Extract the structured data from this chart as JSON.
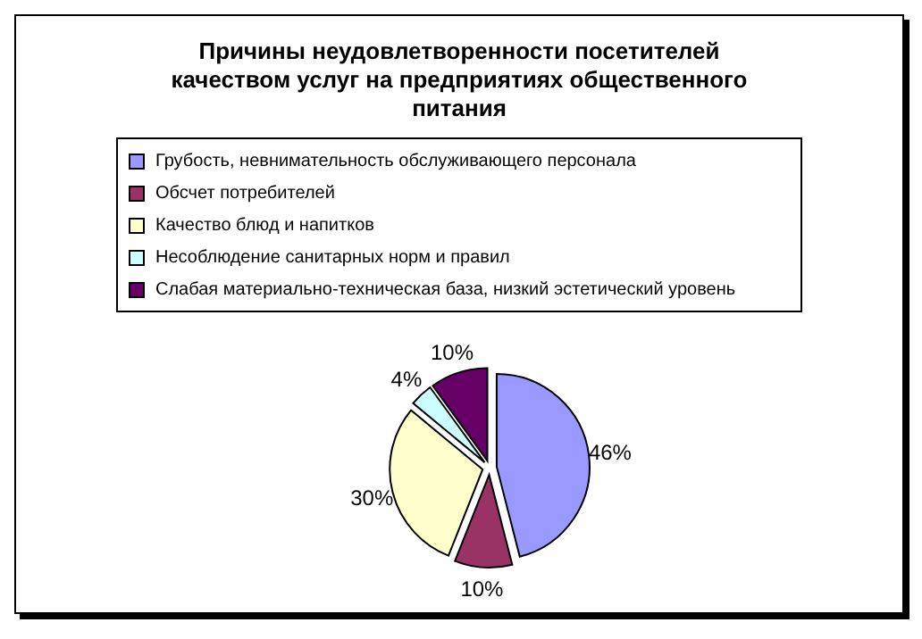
{
  "chart_data": {
    "type": "pie",
    "title": "Причины неудовлетворенности посетителей качеством услуг на предприятиях общественного питания",
    "categories": [
      "Грубость, невнимательность обслуживающего персонала",
      "Обсчет потребителей",
      "Качество блюд и напитков",
      "Несоблюдение санитарных норм и правил",
      "Слабая материально-техническая база, низкий эстетический уровень"
    ],
    "values": [
      46,
      10,
      30,
      4,
      10
    ],
    "value_labels": [
      "46%",
      "10%",
      "30%",
      "4%",
      "10%"
    ],
    "colors": [
      "#9999ff",
      "#993366",
      "#ffffcc",
      "#ccffff",
      "#660066"
    ],
    "legend": "top"
  }
}
